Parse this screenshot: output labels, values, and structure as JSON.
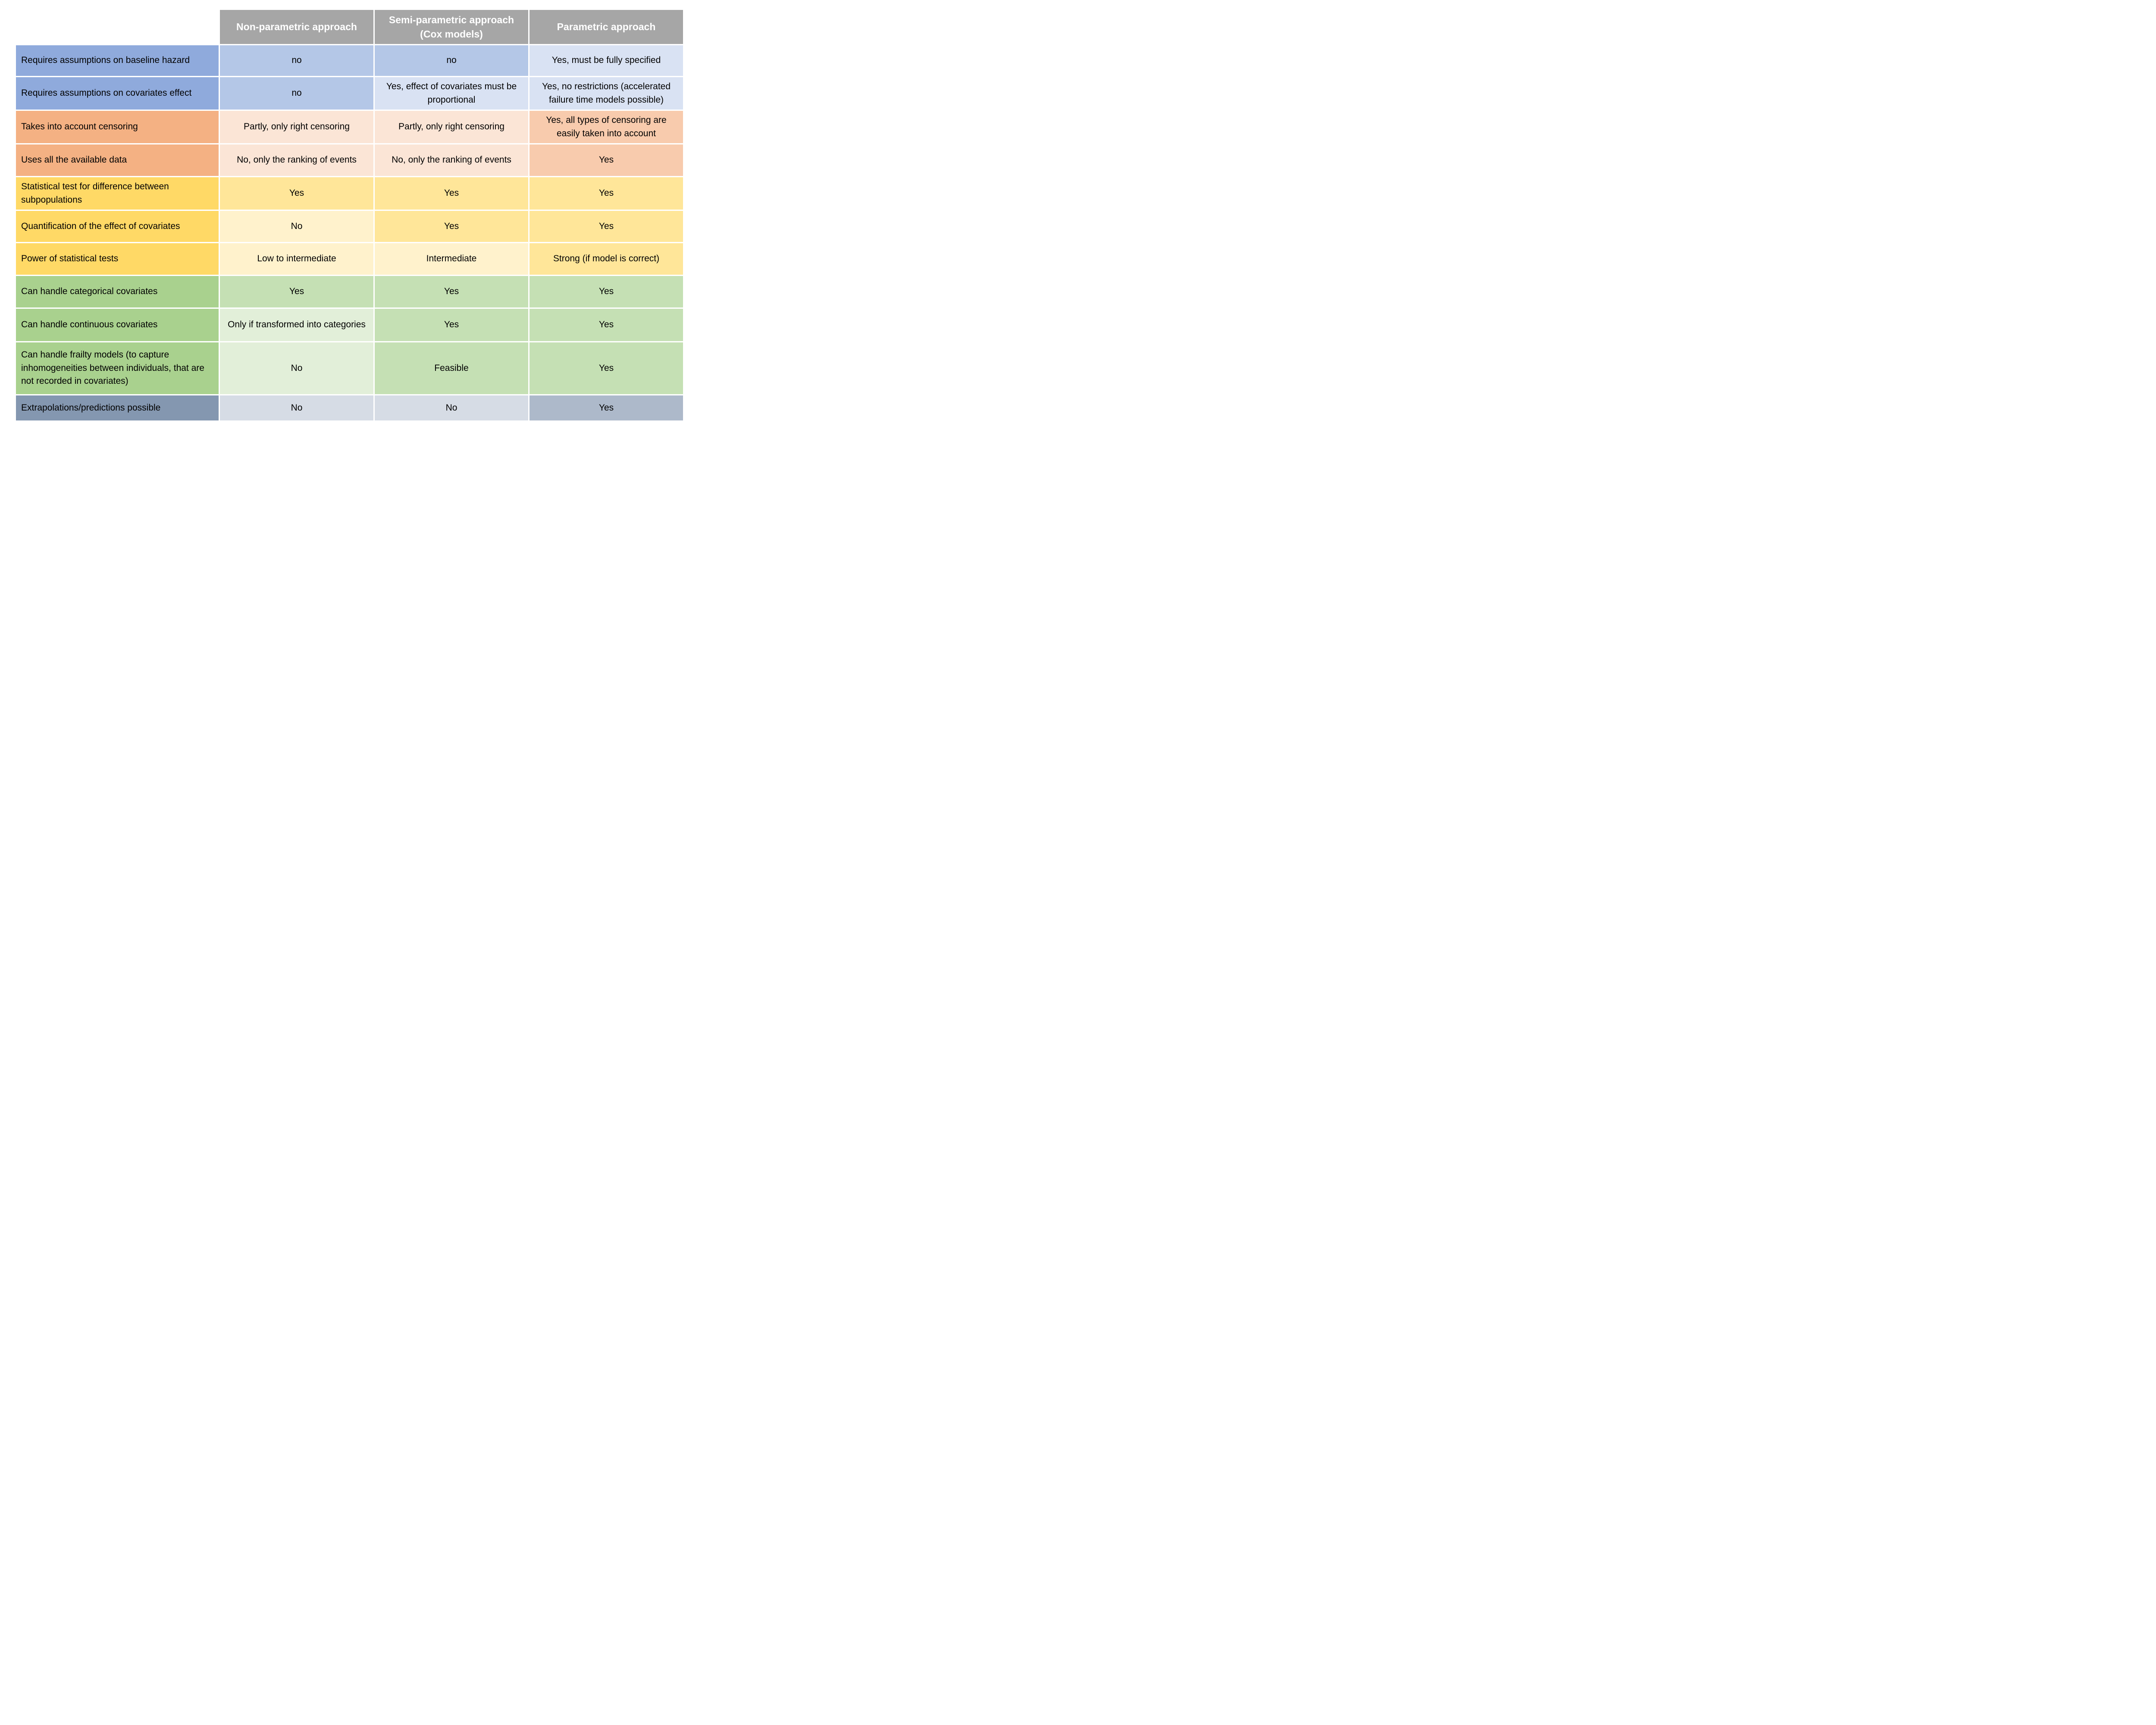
{
  "colors": {
    "header_bg": "#a6a6a6",
    "header_text": "#ffffff",
    "blue_label": "#8faadc",
    "blue_medium": "#b4c7e7",
    "blue_light": "#d9e2f3",
    "orange_label": "#f4b183",
    "orange_medium": "#f8cbad",
    "orange_light": "#fbe5d6",
    "gold_label": "#ffd966",
    "gold_medium": "#ffe699",
    "gold_light": "#fff2cc",
    "green_label": "#a9d18e",
    "green_medium": "#c5e0b4",
    "green_light": "#e2efd9",
    "slate_label": "#8497b0",
    "slate_medium": "#adb9ca",
    "slate_light": "#d6dce5"
  },
  "table": {
    "header": {
      "corner": "",
      "columns": [
        "Non-parametric approach",
        "Semi-parametric approach\n(Cox models)",
        "Parametric approach"
      ]
    },
    "rows": [
      {
        "group": "blue",
        "label": "Requires assumptions on baseline hazard",
        "cells": [
          "no",
          "no",
          "Yes, must be fully specified"
        ]
      },
      {
        "group": "blue",
        "label": "Requires assumptions on covariates effect",
        "cells": [
          "no",
          "Yes, effect of covariates must be proportional",
          "Yes, no restrictions (accelerated failure time models possible)"
        ]
      },
      {
        "group": "orange",
        "label": "Takes into account censoring",
        "cells": [
          "Partly, only right censoring",
          "Partly, only right censoring",
          "Yes, all types of censoring are easily taken into account"
        ]
      },
      {
        "group": "orange",
        "label": "Uses all the available data",
        "cells": [
          "No, only the ranking of events",
          "No, only the ranking of events",
          "Yes"
        ]
      },
      {
        "group": "gold",
        "label": "Statistical test for difference between subpopulations",
        "cells": [
          "Yes",
          "Yes",
          "Yes"
        ]
      },
      {
        "group": "gold",
        "label": "Quantification of the effect of covariates",
        "cells": [
          "No",
          "Yes",
          "Yes"
        ]
      },
      {
        "group": "gold",
        "label": "Power of statistical tests",
        "cells": [
          "Low to intermediate",
          "Intermediate",
          "Strong (if model is correct)"
        ]
      },
      {
        "group": "green",
        "label": "Can handle categorical covariates",
        "cells": [
          "Yes",
          "Yes",
          "Yes"
        ]
      },
      {
        "group": "green",
        "label": "Can handle continuous covariates",
        "cells": [
          "Only if transformed into categories",
          "Yes",
          "Yes"
        ]
      },
      {
        "group": "green",
        "label": "Can handle frailty models (to capture inhomogeneities between individuals, that are not recorded in covariates)",
        "cells": [
          "No",
          "Feasible",
          "Yes"
        ]
      },
      {
        "group": "slate",
        "label": "Extrapolations/predictions possible",
        "cells": [
          "No",
          "No",
          "Yes"
        ]
      }
    ]
  }
}
